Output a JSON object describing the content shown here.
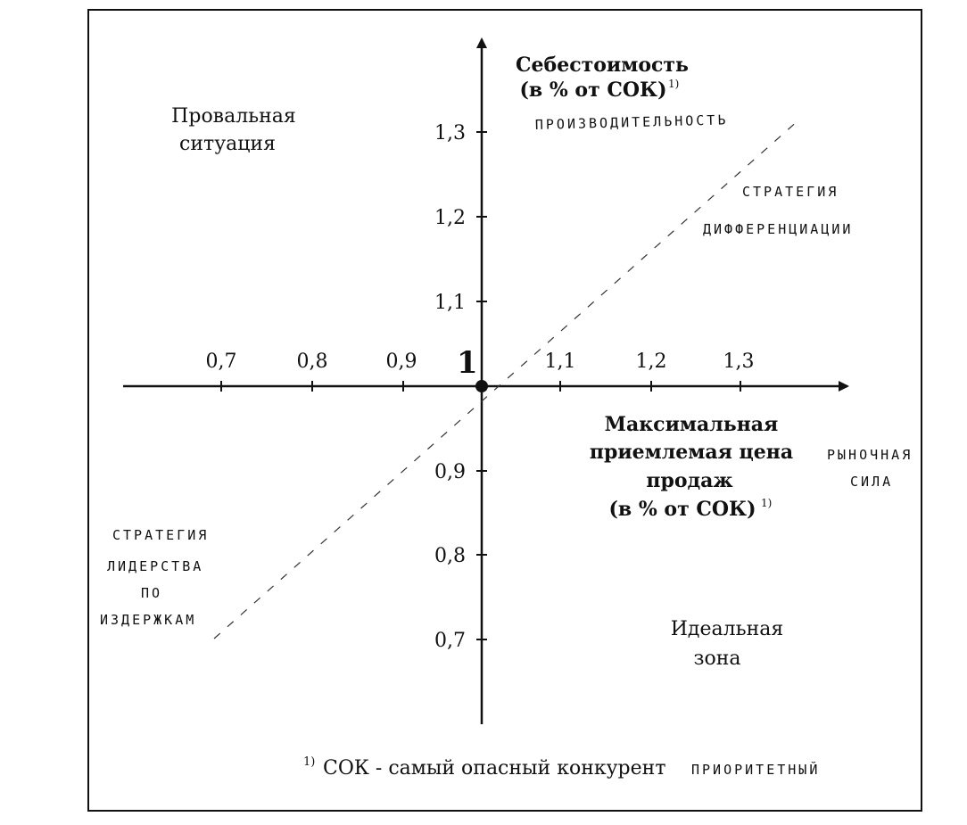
{
  "diagram": {
    "y_axis_title_line1": "Себестоимость",
    "y_axis_title_line2": "(в % от СОК)",
    "y_axis_title_sup": "1)",
    "x_axis_title_line1": "Максимальная",
    "x_axis_title_line2": "приемлемая цена",
    "x_axis_title_line3": "продаж",
    "x_axis_title_line4": "(в % от СОК)",
    "x_axis_title_sup": "1)",
    "origin_label": "1",
    "x_ticks": [
      "0,7",
      "0,8",
      "0,9",
      "1,1",
      "1,2",
      "1,3"
    ],
    "y_ticks": [
      "1,3",
      "1,2",
      "1,1",
      "0,9",
      "0,8",
      "0,7"
    ],
    "quadrant_failure_line1": "Провальная",
    "quadrant_failure_line2": "ситуация",
    "quadrant_ideal_line1": "Идеальная",
    "quadrant_ideal_line2": "зона",
    "footnote_sup": "1)",
    "footnote_text": "СОК - самый опасный конкурент",
    "hand_notes": {
      "productivity": "ПРОИЗВОДИТЕЛЬНОСТЬ",
      "differentiation_line1": "СТРАТЕГИЯ",
      "differentiation_line2": "ДИФФЕРЕНЦИАЦИИ",
      "market_power_line1": "РЫНОЧНАЯ",
      "market_power_line2": "СИЛА",
      "cost_leadership_line1": "СТРАТЕГИЯ",
      "cost_leadership_line2": "ЛИДЕРСТВА",
      "cost_leadership_line3": "ПО",
      "cost_leadership_line4": "ИЗДЕРЖКАМ",
      "priority": "ПРИОРИТЕТНЫЙ"
    }
  }
}
